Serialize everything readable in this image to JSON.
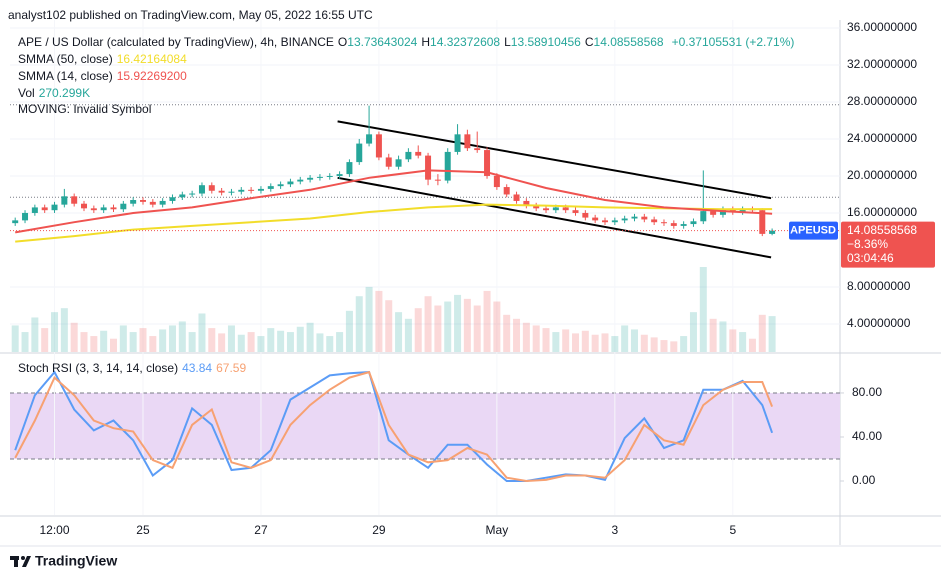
{
  "header": {
    "published": "analyst102 published on TradingView.com, May 05, 2022 16:55 UTC"
  },
  "chart_data": [
    {
      "type": "candlestick",
      "title": "APE / US Dollar (calculated by TradingView), 4h, BINANCE",
      "ohlc_legend": [
        {
          "key": "O",
          "value": "13.73643024"
        },
        {
          "key": "H",
          "value": "14.32372608"
        },
        {
          "key": "L",
          "value": "13.58910456"
        },
        {
          "key": "C",
          "value": "14.08558568"
        }
      ],
      "change": "+0.37105531 (+2.71%)",
      "categories": [
        null,
        null,
        null,
        null,
        "12:00",
        null,
        null,
        null,
        null,
        null,
        null,
        null,
        null,
        "25",
        null,
        null,
        null,
        null,
        null,
        null,
        null,
        null,
        null,
        null,
        null,
        "27",
        null,
        null,
        null,
        null,
        null,
        null,
        null,
        null,
        null,
        null,
        null,
        "29",
        null,
        null,
        null,
        null,
        null,
        null,
        null,
        null,
        null,
        null,
        null,
        "May",
        null,
        null,
        null,
        null,
        null,
        null,
        null,
        null,
        null,
        null,
        null,
        "3",
        null,
        null,
        null,
        null,
        null,
        null,
        null,
        null,
        null,
        null,
        null,
        "5",
        null,
        null,
        null,
        null
      ],
      "open": [
        14.9,
        15.2,
        16.0,
        16.6,
        16.3,
        16.9,
        17.8,
        17.0,
        16.5,
        16.3,
        16.6,
        16.4,
        17.0,
        17.4,
        17.2,
        16.9,
        17.3,
        17.7,
        18.0,
        18.1,
        19.0,
        18.4,
        18.2,
        18.3,
        18.5,
        18.4,
        18.6,
        18.9,
        19.1,
        19.4,
        19.6,
        19.8,
        19.9,
        20.0,
        20.2,
        21.5,
        23.5,
        24.5,
        22.0,
        21.0,
        21.8,
        22.6,
        22.2,
        19.6,
        19.5,
        22.6,
        24.5,
        23.0,
        22.8,
        20.0,
        18.8,
        18.0,
        17.3,
        16.8,
        16.5,
        16.3,
        16.6,
        16.3,
        16.0,
        15.5,
        15.2,
        15.0,
        15.2,
        15.4,
        15.6,
        15.3,
        15.0,
        14.9,
        14.6,
        14.8,
        15.1,
        16.2,
        15.8,
        16.4,
        16.1,
        16.4,
        16.3,
        13.73643024
      ],
      "high": [
        15.5,
        16.3,
        16.9,
        16.9,
        17.2,
        18.6,
        18.1,
        17.3,
        16.8,
        16.9,
        16.9,
        17.3,
        17.7,
        17.7,
        17.5,
        17.6,
        18.0,
        18.3,
        18.4,
        19.3,
        19.3,
        18.7,
        18.6,
        18.8,
        18.8,
        18.9,
        19.2,
        19.4,
        19.7,
        19.9,
        20.1,
        20.2,
        20.3,
        20.5,
        21.8,
        24.0,
        27.6,
        24.8,
        22.4,
        22.2,
        23.0,
        23.3,
        22.5,
        20.2,
        23.0,
        25.6,
        25.0,
        24.8,
        23.1,
        20.3,
        19.1,
        18.3,
        17.6,
        17.1,
        16.8,
        16.9,
        16.9,
        16.6,
        16.3,
        15.8,
        15.5,
        15.5,
        15.7,
        15.9,
        15.9,
        15.6,
        15.3,
        15.2,
        15.1,
        15.4,
        20.6,
        16.5,
        16.7,
        16.7,
        16.7,
        16.7,
        16.5,
        14.32372608
      ],
      "low": [
        14.6,
        14.9,
        15.7,
        16.0,
        16.0,
        16.6,
        16.7,
        16.2,
        16.0,
        16.0,
        16.1,
        16.1,
        16.7,
        16.9,
        16.6,
        16.6,
        17.0,
        17.4,
        17.7,
        17.8,
        18.1,
        17.9,
        17.9,
        18.0,
        18.1,
        18.1,
        18.3,
        18.6,
        18.8,
        19.1,
        19.3,
        19.5,
        19.6,
        19.7,
        19.9,
        21.2,
        23.2,
        21.7,
        20.7,
        20.7,
        21.5,
        21.9,
        19.0,
        19.0,
        19.2,
        22.3,
        22.7,
        22.5,
        19.7,
        18.5,
        17.7,
        17.0,
        16.5,
        16.2,
        16.0,
        16.0,
        16.0,
        15.7,
        15.2,
        14.9,
        14.7,
        14.7,
        14.9,
        15.1,
        15.0,
        14.7,
        14.6,
        14.3,
        14.3,
        14.5,
        14.8,
        15.5,
        15.5,
        15.8,
        15.8,
        16.0,
        13.5,
        13.58910456
      ],
      "close": [
        15.2,
        16.0,
        16.6,
        16.3,
        16.9,
        17.8,
        17.0,
        16.5,
        16.3,
        16.6,
        16.4,
        17.0,
        17.4,
        17.2,
        16.9,
        17.3,
        17.7,
        18.0,
        18.1,
        19.0,
        18.4,
        18.2,
        18.3,
        18.5,
        18.4,
        18.6,
        18.9,
        19.1,
        19.4,
        19.6,
        19.8,
        19.9,
        20.0,
        20.2,
        21.5,
        23.5,
        24.5,
        22.0,
        21.0,
        21.8,
        22.6,
        22.2,
        19.6,
        19.5,
        22.6,
        24.5,
        23.0,
        22.8,
        20.0,
        18.8,
        18.0,
        17.3,
        16.8,
        16.5,
        16.3,
        16.6,
        16.3,
        16.0,
        15.5,
        15.2,
        15.0,
        15.2,
        15.4,
        15.6,
        15.3,
        15.0,
        14.9,
        14.6,
        14.8,
        15.1,
        16.2,
        15.8,
        16.4,
        16.1,
        16.4,
        16.3,
        13.74,
        14.08558568
      ],
      "up_color": "#26a69a",
      "down_color": "#ef5350",
      "ylim": [
        0.97,
        36.86
      ],
      "yticks": [
        {
          "value": 4,
          "label": "4.00000000"
        },
        {
          "value": 8,
          "label": "8.00000000"
        },
        {
          "value": 16,
          "label": "16.00000000"
        },
        {
          "value": 20,
          "label": "20.00000000"
        },
        {
          "value": 24,
          "label": "24.00000000"
        },
        {
          "value": 28,
          "label": "28.00000000"
        },
        {
          "value": 32,
          "label": "32.00000000"
        },
        {
          "value": 36,
          "label": "36.00000000"
        }
      ],
      "grid": true,
      "indicators": [
        {
          "name": "SMMA (50, close)",
          "value_label": "16.42164084",
          "color": "#f2dd2a",
          "x": [
            0,
            6,
            12,
            18,
            24,
            30,
            36,
            42,
            48,
            54,
            60,
            66,
            72,
            77
          ],
          "values": [
            12.9,
            13.5,
            14.2,
            14.6,
            15.0,
            15.4,
            16.1,
            16.6,
            16.9,
            16.8,
            16.6,
            16.5,
            16.4,
            16.42164084
          ]
        },
        {
          "name": "SMMA (14, close)",
          "value_label": "15.92269200",
          "color": "#ef5350",
          "x": [
            0,
            6,
            12,
            18,
            24,
            30,
            36,
            42,
            48,
            54,
            60,
            66,
            72,
            77
          ],
          "values": [
            13.9,
            15.0,
            16.0,
            16.6,
            17.6,
            18.5,
            19.8,
            20.6,
            20.4,
            18.7,
            17.4,
            16.6,
            16.2,
            15.922692
          ]
        }
      ],
      "volume": {
        "name": "Vol",
        "value_label": "270.299K",
        "vlim": [
          0,
          2500
        ],
        "values": [
          200,
          150,
          260,
          180,
          300,
          330,
          220,
          150,
          120,
          160,
          100,
          200,
          150,
          180,
          120,
          170,
          200,
          230,
          150,
          290,
          180,
          140,
          200,
          130,
          150,
          120,
          180,
          160,
          150,
          190,
          220,
          140,
          120,
          150,
          310,
          420,
          490,
          460,
          390,
          300,
          250,
          330,
          420,
          350,
          380,
          430,
          400,
          350,
          460,
          380,
          280,
          250,
          220,
          200,
          180,
          150,
          170,
          140,
          160,
          130,
          140,
          120,
          200,
          170,
          130,
          110,
          90,
          80,
          120,
          300,
          640,
          250,
          230,
          170,
          150,
          100,
          280,
          270.299
        ]
      },
      "note": "MOVING: Invalid Symbol",
      "trend_lines": [
        {
          "x": [
            32.8,
            76.9
          ],
          "values": [
            25.9,
            17.6
          ]
        },
        {
          "x": [
            32.8,
            76.9
          ],
          "values": [
            19.8,
            11.2
          ]
        }
      ],
      "trend_color": "#000000",
      "price_lines": [
        27.7,
        17.7
      ],
      "symbol_label": "APEUSD",
      "price_label": "14.08558568",
      "change_label": "−8.36%",
      "countdown": "03:04:46"
    },
    {
      "type": "line",
      "title": "Stoch RSI (3, 3, 14, 14, close)",
      "x": [
        0,
        2,
        4,
        6,
        8,
        10,
        12,
        14,
        16,
        18,
        20,
        22,
        24,
        26,
        28,
        30,
        32,
        34,
        36,
        38,
        40,
        42,
        44,
        46,
        48,
        50,
        52,
        54,
        56,
        58,
        60,
        62,
        64,
        66,
        68,
        70,
        72,
        74,
        76,
        77
      ],
      "series": [
        {
          "value_label": "43.84",
          "color": "#5b9cf6",
          "values": [
            28,
            78,
            99,
            65,
            46,
            55,
            37,
            5,
            19,
            66,
            51,
            10,
            12,
            28,
            74,
            85,
            96,
            98,
            99,
            37,
            24,
            12,
            33,
            33,
            15,
            0,
            0,
            3,
            6,
            5,
            1,
            39,
            57,
            30,
            37,
            83,
            83,
            91,
            69,
            43.84
          ]
        },
        {
          "value_label": "67.59",
          "color": "#f7a172",
          "values": [
            21,
            55,
            94,
            78,
            55,
            48,
            45,
            19,
            12,
            51,
            65,
            17,
            12,
            19,
            51,
            69,
            83,
            94,
            99,
            51,
            24,
            17,
            19,
            30,
            24,
            3,
            0,
            1,
            5,
            5,
            3,
            19,
            51,
            37,
            33,
            69,
            83,
            90,
            90,
            67.59
          ]
        }
      ],
      "ylim": [
        -30.9,
        114.5
      ],
      "yticks": [
        {
          "value": 0,
          "label": "0.00"
        },
        {
          "value": 40,
          "label": "40.00"
        },
        {
          "value": 80,
          "label": "80.00"
        }
      ],
      "band": [
        20,
        80
      ],
      "band_color": "#ead8f5"
    }
  ],
  "footer": {
    "brand": "TradingView"
  }
}
